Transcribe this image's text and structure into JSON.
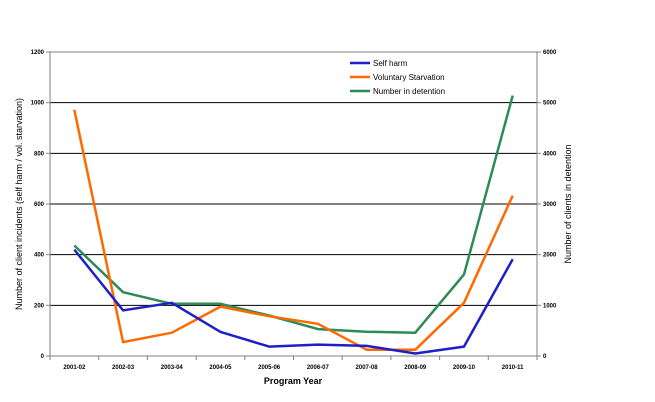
{
  "chart_data": {
    "type": "line",
    "title": "",
    "xlabel": "Program Year",
    "ylabel_left": "Number of client incidents (self harm / vol. starvation)",
    "ylabel_right": "Number of clients in detention",
    "categories": [
      "2001-02",
      "2002-03",
      "2003-04",
      "2004-05",
      "2005-06",
      "2006-07",
      "2007-08",
      "2008-09",
      "2009-10",
      "2010-11"
    ],
    "ylim_left": [
      0,
      1200
    ],
    "yticks_left": [
      "0",
      "200",
      "400",
      "600",
      "800",
      "1000",
      "1200"
    ],
    "ylim_right": [
      0,
      6000
    ],
    "yticks_right": [
      "0",
      "1000",
      "2000",
      "3000",
      "4000",
      "5000",
      "6000"
    ],
    "grid": true,
    "legend_position": "top-right",
    "series": [
      {
        "name": "Self harm",
        "axis": "left",
        "color": "#1f1fc8",
        "values": [
          420,
          180,
          210,
          95,
          37,
          45,
          40,
          10,
          37,
          382
        ]
      },
      {
        "name": "Voluntary Starvation",
        "axis": "left",
        "color": "#ff6a00",
        "values": [
          972,
          55,
          92,
          195,
          157,
          127,
          25,
          25,
          210,
          633
        ]
      },
      {
        "name": "Number in detention",
        "axis": "right",
        "color": "#2e8b57",
        "values": [
          2180,
          1260,
          1030,
          1030,
          800,
          530,
          480,
          460,
          1610,
          5140
        ]
      }
    ]
  }
}
